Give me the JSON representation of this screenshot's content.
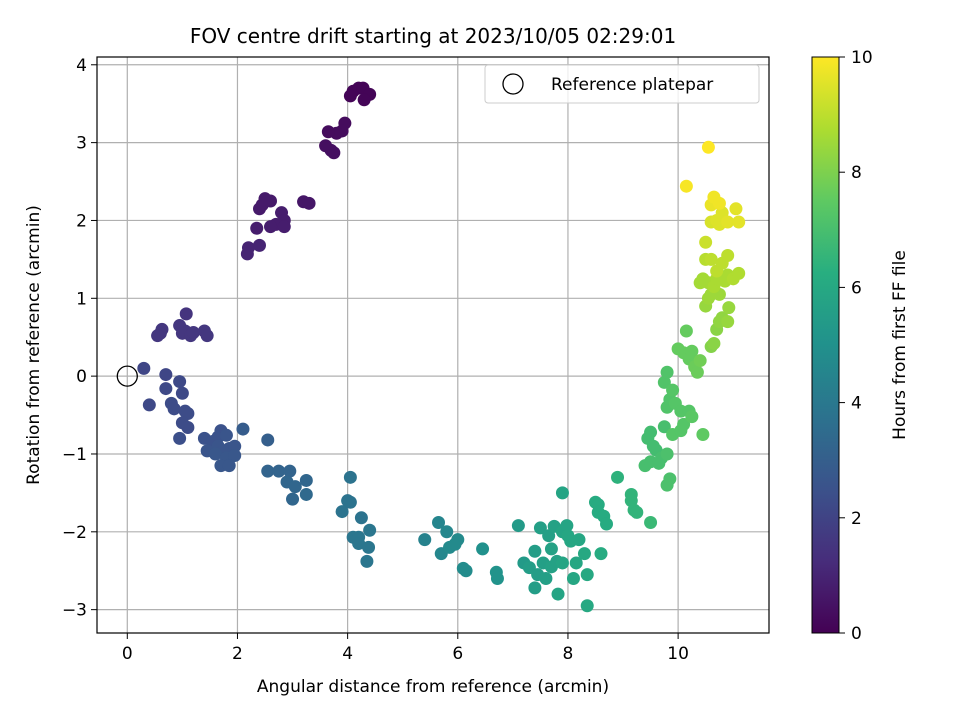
{
  "chart_data": {
    "type": "scatter",
    "title": "FOV centre drift starting at 2023/10/05 02:29:01",
    "xlabel": "Angular distance from reference (arcmin)",
    "ylabel": "Rotation from reference (arcmin)",
    "xlim": [
      -0.55,
      11.65
    ],
    "ylim": [
      -3.3,
      4.1
    ],
    "xticks": [
      0,
      2,
      4,
      6,
      8,
      10
    ],
    "yticks": [
      -3,
      -2,
      -1,
      0,
      1,
      2,
      3,
      4
    ],
    "grid": true,
    "legend": {
      "position": "top-right",
      "entries": [
        "Reference platepar"
      ]
    },
    "reference": {
      "x": 0,
      "y": 0
    },
    "colorbar": {
      "label": "Hours from first FF file",
      "range": [
        0,
        10
      ],
      "ticks": [
        0,
        2,
        4,
        6,
        8,
        10
      ],
      "colormap": "viridis"
    },
    "points": [
      [
        4.1,
        3.66,
        0.1
      ],
      [
        4.2,
        3.7,
        0.1
      ],
      [
        4.28,
        3.7,
        0.1
      ],
      [
        4.4,
        3.62,
        0.1
      ],
      [
        4.3,
        3.55,
        0.1
      ],
      [
        4.05,
        3.6,
        0.1
      ],
      [
        3.95,
        3.25,
        0.3
      ],
      [
        3.9,
        3.15,
        0.3
      ],
      [
        3.8,
        3.12,
        0.3
      ],
      [
        3.65,
        3.14,
        0.3
      ],
      [
        3.7,
        2.9,
        0.4
      ],
      [
        3.6,
        2.96,
        0.4
      ],
      [
        3.75,
        2.87,
        0.4
      ],
      [
        3.2,
        2.24,
        0.6
      ],
      [
        3.3,
        2.22,
        0.6
      ],
      [
        2.5,
        2.28,
        0.7
      ],
      [
        2.45,
        2.2,
        0.7
      ],
      [
        2.6,
        2.25,
        0.7
      ],
      [
        2.4,
        2.15,
        0.7
      ],
      [
        2.8,
        2.1,
        0.8
      ],
      [
        2.85,
        2.0,
        0.8
      ],
      [
        2.7,
        1.95,
        0.8
      ],
      [
        2.6,
        1.92,
        0.8
      ],
      [
        2.85,
        1.92,
        0.8
      ],
      [
        2.35,
        1.9,
        0.8
      ],
      [
        2.2,
        1.65,
        1.0
      ],
      [
        2.4,
        1.68,
        1.0
      ],
      [
        2.18,
        1.57,
        1.0
      ],
      [
        1.07,
        0.8,
        1.5
      ],
      [
        0.63,
        0.6,
        1.6
      ],
      [
        0.6,
        0.55,
        1.6
      ],
      [
        0.55,
        0.52,
        1.6
      ],
      [
        0.95,
        0.65,
        1.6
      ],
      [
        1.05,
        0.58,
        1.6
      ],
      [
        1.0,
        0.55,
        1.6
      ],
      [
        1.15,
        0.52,
        1.6
      ],
      [
        1.2,
        0.56,
        1.6
      ],
      [
        1.4,
        0.58,
        1.6
      ],
      [
        1.45,
        0.52,
        1.6
      ],
      [
        0.3,
        0.1,
        2.1
      ],
      [
        0.7,
        0.02,
        2.1
      ],
      [
        0.95,
        -0.07,
        2.2
      ],
      [
        0.7,
        -0.16,
        2.2
      ],
      [
        1.0,
        -0.22,
        2.2
      ],
      [
        0.4,
        -0.37,
        2.2
      ],
      [
        0.8,
        -0.35,
        2.3
      ],
      [
        0.85,
        -0.42,
        2.3
      ],
      [
        1.05,
        -0.45,
        2.3
      ],
      [
        1.1,
        -0.48,
        2.3
      ],
      [
        1.0,
        -0.6,
        2.3
      ],
      [
        1.1,
        -0.66,
        2.3
      ],
      [
        0.95,
        -0.8,
        2.4
      ],
      [
        1.4,
        -0.8,
        2.5
      ],
      [
        1.55,
        -0.84,
        2.5
      ],
      [
        1.65,
        -0.78,
        2.5
      ],
      [
        1.7,
        -0.7,
        2.5
      ],
      [
        1.8,
        -0.76,
        2.6
      ],
      [
        1.65,
        -0.9,
        2.6
      ],
      [
        1.85,
        -0.93,
        2.6
      ],
      [
        1.75,
        -0.96,
        2.6
      ],
      [
        1.95,
        -0.9,
        2.6
      ],
      [
        1.45,
        -0.96,
        2.6
      ],
      [
        1.6,
        -1.0,
        2.7
      ],
      [
        1.8,
        -1.05,
        2.7
      ],
      [
        1.95,
        -1.02,
        2.7
      ],
      [
        1.7,
        -1.15,
        2.7
      ],
      [
        1.85,
        -1.15,
        2.7
      ],
      [
        2.1,
        -0.68,
        2.9
      ],
      [
        2.55,
        -0.82,
        3.0
      ],
      [
        2.55,
        -1.22,
        3.2
      ],
      [
        2.75,
        -1.22,
        3.2
      ],
      [
        2.95,
        -1.22,
        3.2
      ],
      [
        2.9,
        -1.36,
        3.3
      ],
      [
        3.05,
        -1.42,
        3.3
      ],
      [
        3.25,
        -1.34,
        3.3
      ],
      [
        3.0,
        -1.58,
        3.3
      ],
      [
        3.25,
        -1.52,
        3.4
      ],
      [
        4.05,
        -1.3,
        3.8
      ],
      [
        4.05,
        -1.62,
        3.8
      ],
      [
        4.0,
        -1.6,
        3.8
      ],
      [
        3.9,
        -1.74,
        3.8
      ],
      [
        4.25,
        -1.82,
        3.8
      ],
      [
        4.1,
        -2.07,
        3.9
      ],
      [
        4.2,
        -2.07,
        3.9
      ],
      [
        4.4,
        -1.98,
        3.9
      ],
      [
        4.2,
        -2.15,
        3.9
      ],
      [
        4.38,
        -2.2,
        3.9
      ],
      [
        4.35,
        -2.38,
        3.9
      ],
      [
        5.4,
        -2.1,
        4.4
      ],
      [
        5.65,
        -1.88,
        4.5
      ],
      [
        5.8,
        -2.0,
        4.6
      ],
      [
        5.7,
        -2.28,
        4.6
      ],
      [
        5.85,
        -2.2,
        4.7
      ],
      [
        6.0,
        -2.1,
        4.7
      ],
      [
        5.95,
        -2.16,
        4.7
      ],
      [
        6.1,
        -2.47,
        4.8
      ],
      [
        6.15,
        -2.5,
        4.8
      ],
      [
        6.45,
        -2.22,
        5.0
      ],
      [
        6.7,
        -2.52,
        5.1
      ],
      [
        6.72,
        -2.6,
        5.1
      ],
      [
        7.1,
        -1.92,
        5.4
      ],
      [
        7.2,
        -2.4,
        5.4
      ],
      [
        7.3,
        -2.46,
        5.5
      ],
      [
        7.4,
        -2.25,
        5.5
      ],
      [
        7.45,
        -2.55,
        5.5
      ],
      [
        7.4,
        -2.72,
        5.5
      ],
      [
        7.5,
        -1.95,
        5.6
      ],
      [
        7.55,
        -2.4,
        5.6
      ],
      [
        7.6,
        -2.6,
        5.6
      ],
      [
        7.65,
        -2.05,
        5.6
      ],
      [
        7.7,
        -2.22,
        5.7
      ],
      [
        7.7,
        -2.45,
        5.7
      ],
      [
        7.75,
        -1.93,
        5.7
      ],
      [
        7.8,
        -2.38,
        5.7
      ],
      [
        7.82,
        -2.8,
        5.8
      ],
      [
        7.9,
        -2.4,
        5.8
      ],
      [
        7.9,
        -1.5,
        5.8
      ],
      [
        7.9,
        -2.0,
        5.8
      ],
      [
        7.98,
        -1.92,
        5.8
      ],
      [
        8.0,
        -2.05,
        5.9
      ],
      [
        8.05,
        -2.12,
        5.9
      ],
      [
        8.1,
        -2.6,
        5.9
      ],
      [
        8.15,
        -2.4,
        5.9
      ],
      [
        8.2,
        -2.1,
        5.9
      ],
      [
        8.3,
        -2.28,
        6.0
      ],
      [
        8.35,
        -2.55,
        6.0
      ],
      [
        8.35,
        -2.95,
        6.0
      ],
      [
        8.5,
        -1.62,
        6.1
      ],
      [
        8.55,
        -1.65,
        6.1
      ],
      [
        8.55,
        -1.75,
        6.1
      ],
      [
        8.6,
        -2.28,
        6.1
      ],
      [
        8.65,
        -1.8,
        6.1
      ],
      [
        8.7,
        -1.9,
        6.1
      ],
      [
        8.9,
        -1.3,
        6.4
      ],
      [
        9.15,
        -1.52,
        6.5
      ],
      [
        9.15,
        -1.6,
        6.5
      ],
      [
        9.2,
        -1.72,
        6.5
      ],
      [
        9.25,
        -1.75,
        6.5
      ],
      [
        9.5,
        -1.88,
        6.7
      ],
      [
        9.45,
        -0.8,
        6.9
      ],
      [
        9.5,
        -0.72,
        6.9
      ],
      [
        9.55,
        -0.9,
        6.9
      ],
      [
        9.6,
        -0.95,
        6.9
      ],
      [
        9.4,
        -1.15,
        7.0
      ],
      [
        9.5,
        -1.1,
        7.0
      ],
      [
        9.65,
        -1.12,
        7.0
      ],
      [
        9.7,
        -1.05,
        7.0
      ],
      [
        9.75,
        -0.65,
        7.0
      ],
      [
        9.8,
        -1.0,
        7.1
      ],
      [
        9.8,
        -1.4,
        7.1
      ],
      [
        9.85,
        -1.32,
        7.1
      ],
      [
        9.8,
        -0.4,
        7.2
      ],
      [
        9.75,
        -0.08,
        7.2
      ],
      [
        9.8,
        0.05,
        7.2
      ],
      [
        9.85,
        -0.3,
        7.2
      ],
      [
        9.9,
        -0.18,
        7.3
      ],
      [
        9.95,
        -0.35,
        7.3
      ],
      [
        9.9,
        -0.75,
        7.3
      ],
      [
        10.05,
        -0.7,
        7.3
      ],
      [
        10.05,
        -0.45,
        7.3
      ],
      [
        10.1,
        -0.62,
        7.3
      ],
      [
        10.2,
        -0.45,
        7.3
      ],
      [
        10.25,
        -0.52,
        7.4
      ],
      [
        10.45,
        -0.75,
        7.5
      ],
      [
        10.0,
        0.35,
        7.6
      ],
      [
        10.1,
        0.3,
        7.6
      ],
      [
        10.15,
        0.58,
        7.6
      ],
      [
        10.2,
        0.22,
        7.6
      ],
      [
        10.25,
        0.32,
        7.6
      ],
      [
        10.3,
        0.12,
        7.7
      ],
      [
        10.35,
        0.05,
        7.7
      ],
      [
        10.4,
        0.2,
        7.8
      ],
      [
        10.6,
        0.38,
        8.1
      ],
      [
        10.65,
        0.42,
        8.2
      ],
      [
        10.7,
        0.6,
        8.2
      ],
      [
        10.75,
        0.7,
        8.3
      ],
      [
        10.8,
        0.75,
        8.3
      ],
      [
        10.9,
        0.7,
        8.4
      ],
      [
        10.92,
        0.88,
        8.4
      ],
      [
        10.5,
        0.9,
        8.4
      ],
      [
        10.55,
        1.0,
        8.5
      ],
      [
        10.6,
        1.05,
        8.5
      ],
      [
        10.75,
        1.05,
        8.5
      ],
      [
        10.4,
        1.2,
        8.6
      ],
      [
        10.45,
        1.25,
        8.6
      ],
      [
        10.55,
        1.2,
        8.6
      ],
      [
        10.65,
        1.15,
        8.7
      ],
      [
        10.7,
        1.25,
        8.7
      ],
      [
        10.85,
        1.22,
        8.7
      ],
      [
        10.9,
        1.3,
        8.7
      ],
      [
        11.0,
        1.25,
        8.8
      ],
      [
        11.1,
        1.32,
        8.8
      ],
      [
        10.5,
        1.5,
        8.9
      ],
      [
        10.6,
        1.5,
        9.0
      ],
      [
        10.7,
        1.35,
        9.0
      ],
      [
        10.8,
        1.45,
        9.0
      ],
      [
        10.9,
        1.55,
        9.0
      ],
      [
        10.5,
        1.72,
        9.2
      ],
      [
        10.6,
        1.98,
        9.4
      ],
      [
        10.7,
        2.0,
        9.5
      ],
      [
        10.75,
        1.95,
        9.5
      ],
      [
        10.8,
        2.1,
        9.5
      ],
      [
        10.9,
        1.98,
        9.6
      ],
      [
        11.05,
        2.15,
        9.6
      ],
      [
        11.1,
        1.98,
        9.6
      ],
      [
        10.6,
        2.2,
        9.7
      ],
      [
        10.65,
        2.3,
        9.8
      ],
      [
        10.75,
        2.22,
        9.8
      ],
      [
        10.15,
        2.44,
        9.9
      ],
      [
        10.55,
        2.94,
        10.0
      ]
    ]
  }
}
